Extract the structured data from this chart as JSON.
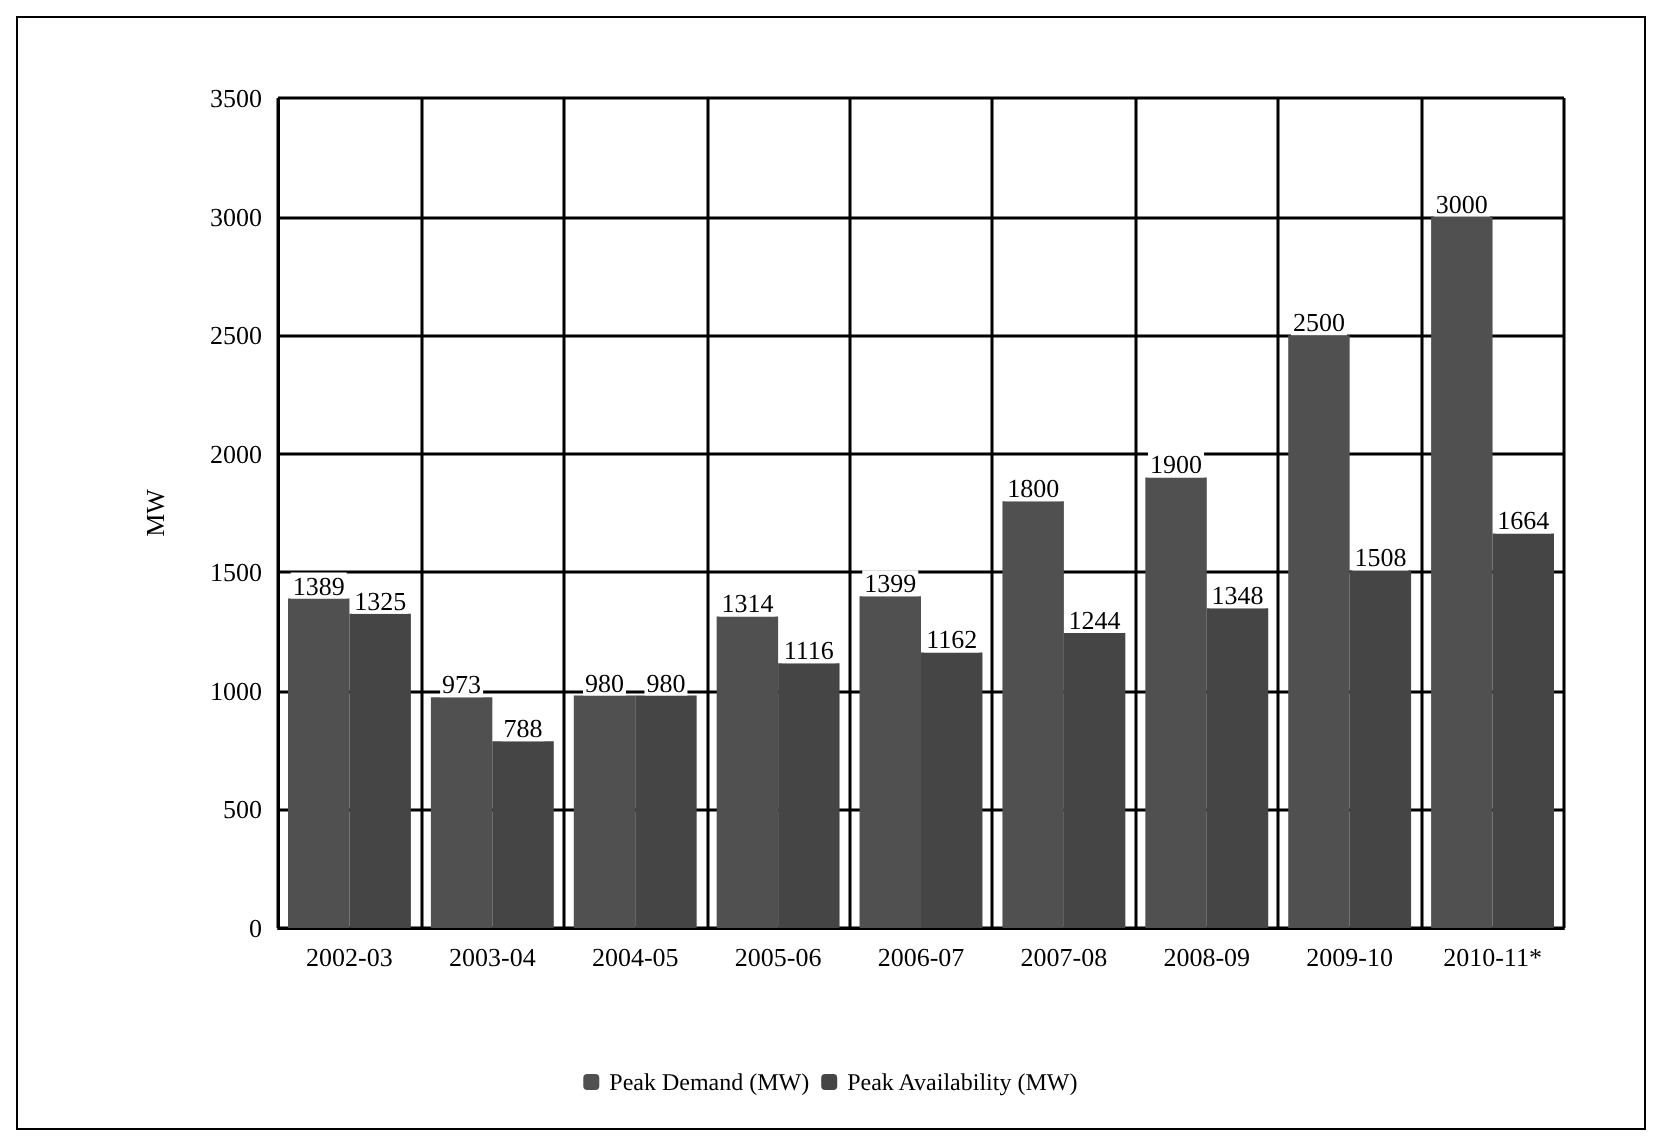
{
  "chart_data": {
    "type": "bar",
    "ylabel": "MW",
    "categories": [
      "2002-03",
      "2003-04",
      "2004-05",
      "2005-06",
      "2006-07",
      "2007-08",
      "2008-09",
      "2009-10",
      "2010-11*"
    ],
    "series": [
      {
        "name": "Peak Demand (MW)",
        "color": "#505050",
        "values": [
          1389,
          973,
          980,
          1314,
          1399,
          1800,
          1900,
          2500,
          3000
        ]
      },
      {
        "name": "Peak Availability (MW)",
        "color": "#454545",
        "values": [
          1325,
          788,
          980,
          1116,
          1162,
          1244,
          1348,
          1508,
          1664
        ]
      }
    ],
    "ylim": [
      0,
      3500
    ],
    "yticks": [
      0,
      500,
      1000,
      1500,
      2000,
      2500,
      3000,
      3500
    ],
    "grid": true,
    "legend": "bottom",
    "data_labels": true
  }
}
